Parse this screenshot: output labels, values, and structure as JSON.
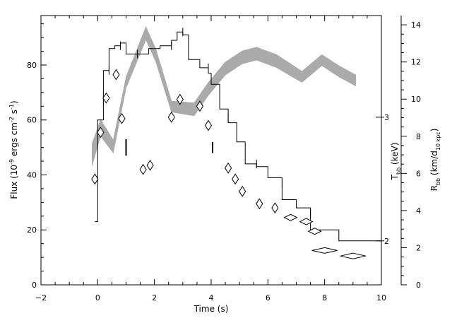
{
  "chart_data": {
    "type": "line",
    "xlabel": "Time (s)",
    "ylabel_left": "Flux (10",
    "ylabel_left_exp": "-9",
    "ylabel_left_rest": " ergs cm",
    "ylabel_left_exp2": "-2",
    "ylabel_left_rest2": " s",
    "ylabel_left_exp3": "-1",
    "ylabel_left_end": ")",
    "ylabel_T": "T",
    "ylabel_T_sub": "bb",
    "ylabel_T_rest": " (keV)",
    "ylabel_R": "R",
    "ylabel_R_sub": "bb",
    "ylabel_R_rest": " (km/d",
    "ylabel_R_sub2": "10 kpc",
    "ylabel_R_end": ")",
    "xlim": [
      -2,
      10
    ],
    "ylim_flux": [
      0,
      98
    ],
    "ylim_R": [
      0,
      14.5
    ],
    "x_ticks": [
      -2,
      0,
      2,
      4,
      6,
      8,
      10
    ],
    "x_tick_labels": [
      "−2",
      "0",
      "2",
      "4",
      "6",
      "8",
      "10"
    ],
    "flux_ticks": [
      0,
      20,
      40,
      60,
      80
    ],
    "flux_tick_labels": [
      "0",
      "20",
      "40",
      "60",
      "80"
    ],
    "R_ticks": [
      0,
      2,
      4,
      6,
      8,
      10,
      12,
      14
    ],
    "R_tick_labels": [
      "0",
      "2",
      "4",
      "6",
      "8",
      "10",
      "12",
      "14"
    ],
    "T_ticks": [
      {
        "keV": 2,
        "flux": 16
      },
      {
        "keV": 3,
        "flux": 61
      }
    ],
    "T_tick_labels": [
      "2",
      "3"
    ],
    "flux_histogram": [
      {
        "x0": -0.1,
        "x1": 0.0,
        "y": 23
      },
      {
        "x0": 0.0,
        "x1": 0.2,
        "y": 60
      },
      {
        "x0": 0.2,
        "x1": 0.4,
        "y": 78
      },
      {
        "x0": 0.4,
        "x1": 0.6,
        "y": 86
      },
      {
        "x0": 0.6,
        "x1": 0.8,
        "y": 87
      },
      {
        "x0": 0.8,
        "x1": 1.0,
        "y": 88
      },
      {
        "x0": 1.0,
        "x1": 1.4,
        "y": 84
      },
      {
        "x0": 1.4,
        "x1": 1.8,
        "y": 84
      },
      {
        "x0": 1.8,
        "x1": 2.2,
        "y": 86
      },
      {
        "x0": 2.2,
        "x1": 2.6,
        "y": 87
      },
      {
        "x0": 2.6,
        "x1": 2.8,
        "y": 89
      },
      {
        "x0": 2.8,
        "x1": 3.0,
        "y": 92
      },
      {
        "x0": 3.0,
        "x1": 3.2,
        "y": 91
      },
      {
        "x0": 3.2,
        "x1": 3.6,
        "y": 82
      },
      {
        "x0": 3.6,
        "x1": 3.9,
        "y": 79
      },
      {
        "x0": 3.9,
        "x1": 4.0,
        "y": 77
      },
      {
        "x0": 4.0,
        "x1": 4.3,
        "y": 73
      },
      {
        "x0": 4.3,
        "x1": 4.6,
        "y": 64
      },
      {
        "x0": 4.6,
        "x1": 4.9,
        "y": 59
      },
      {
        "x0": 4.9,
        "x1": 5.2,
        "y": 52
      },
      {
        "x0": 5.2,
        "x1": 5.6,
        "y": 44
      },
      {
        "x0": 5.6,
        "x1": 6.0,
        "y": 43
      },
      {
        "x0": 6.0,
        "x1": 6.5,
        "y": 39
      },
      {
        "x0": 6.5,
        "x1": 7.0,
        "y": 31
      },
      {
        "x0": 7.0,
        "x1": 7.5,
        "y": 28
      },
      {
        "x0": 7.5,
        "x1": 8.0,
        "y": 20
      },
      {
        "x0": 8.0,
        "x1": 8.5,
        "y": 20
      },
      {
        "x0": 8.5,
        "x1": 10.0,
        "y": 16
      }
    ],
    "flux_error_ticks": [
      {
        "x": 0.4,
        "y": 78
      },
      {
        "x": 0.8,
        "y": 87
      },
      {
        "x": 1.4,
        "y": 84
      },
      {
        "x": 2.6,
        "y": 87
      },
      {
        "x": 3.0,
        "y": 92
      },
      {
        "x": 3.9,
        "y": 79
      },
      {
        "x": 4.6,
        "y": 61
      },
      {
        "x": 5.6,
        "y": 44
      },
      {
        "x": 6.5,
        "y": 37
      },
      {
        "x": 7.5,
        "y": 26
      }
    ],
    "temperature_diamonds": [
      {
        "t": -0.1,
        "flux": 38.5
      },
      {
        "t": 0.1,
        "flux": 55.5
      },
      {
        "t": 0.3,
        "flux": 68
      },
      {
        "t": 0.65,
        "flux": 76.5
      },
      {
        "t": 0.85,
        "flux": 60.5
      },
      {
        "t": 1.6,
        "flux": 42
      },
      {
        "t": 1.85,
        "flux": 43.5
      },
      {
        "t": 2.6,
        "flux": 61
      },
      {
        "t": 2.9,
        "flux": 67.5
      },
      {
        "t": 3.6,
        "flux": 65
      },
      {
        "t": 3.9,
        "flux": 58
      },
      {
        "t": 4.6,
        "flux": 42.5
      },
      {
        "t": 4.85,
        "flux": 38.5
      },
      {
        "t": 5.1,
        "flux": 34
      },
      {
        "t": 5.7,
        "flux": 29.5
      },
      {
        "t": 6.25,
        "flux": 28
      },
      {
        "t": 6.8,
        "flux": 24.5
      },
      {
        "t": 7.35,
        "flux": 23
      },
      {
        "t": 7.65,
        "flux": 19.5
      },
      {
        "t": 8.0,
        "flux": 12.5
      },
      {
        "t": 9.0,
        "flux": 10.5
      }
    ],
    "temperature_bars": [
      {
        "t": 1.0,
        "flux_low": 47,
        "flux_high": 53
      },
      {
        "t": 4.05,
        "flux_low": 48,
        "flux_high": 52
      }
    ],
    "radius_band": [
      {
        "t": -0.2,
        "R_low": 6.4,
        "R_high": 7.6
      },
      {
        "t": 0.1,
        "R_low": 8.0,
        "R_high": 8.9
      },
      {
        "t": 0.55,
        "R_low": 7.1,
        "R_high": 7.8
      },
      {
        "t": 1.0,
        "R_low": 10.6,
        "R_high": 11.2
      },
      {
        "t": 1.7,
        "R_low": 13.2,
        "R_high": 13.9
      },
      {
        "t": 2.05,
        "R_low": 12.0,
        "R_high": 12.7
      },
      {
        "t": 2.6,
        "R_low": 9.3,
        "R_high": 9.9
      },
      {
        "t": 3.4,
        "R_low": 9.1,
        "R_high": 9.8
      },
      {
        "t": 3.9,
        "R_low": 10.2,
        "R_high": 10.9
      },
      {
        "t": 4.5,
        "R_low": 11.3,
        "R_high": 12.0
      },
      {
        "t": 5.1,
        "R_low": 11.9,
        "R_high": 12.6
      },
      {
        "t": 5.6,
        "R_low": 12.1,
        "R_high": 12.8
      },
      {
        "t": 6.3,
        "R_low": 11.7,
        "R_high": 12.4
      },
      {
        "t": 7.2,
        "R_low": 10.9,
        "R_high": 11.5
      },
      {
        "t": 7.9,
        "R_low": 11.8,
        "R_high": 12.4
      },
      {
        "t": 8.5,
        "R_low": 11.2,
        "R_high": 11.8
      },
      {
        "t": 9.1,
        "R_low": 10.7,
        "R_high": 11.3
      }
    ]
  }
}
